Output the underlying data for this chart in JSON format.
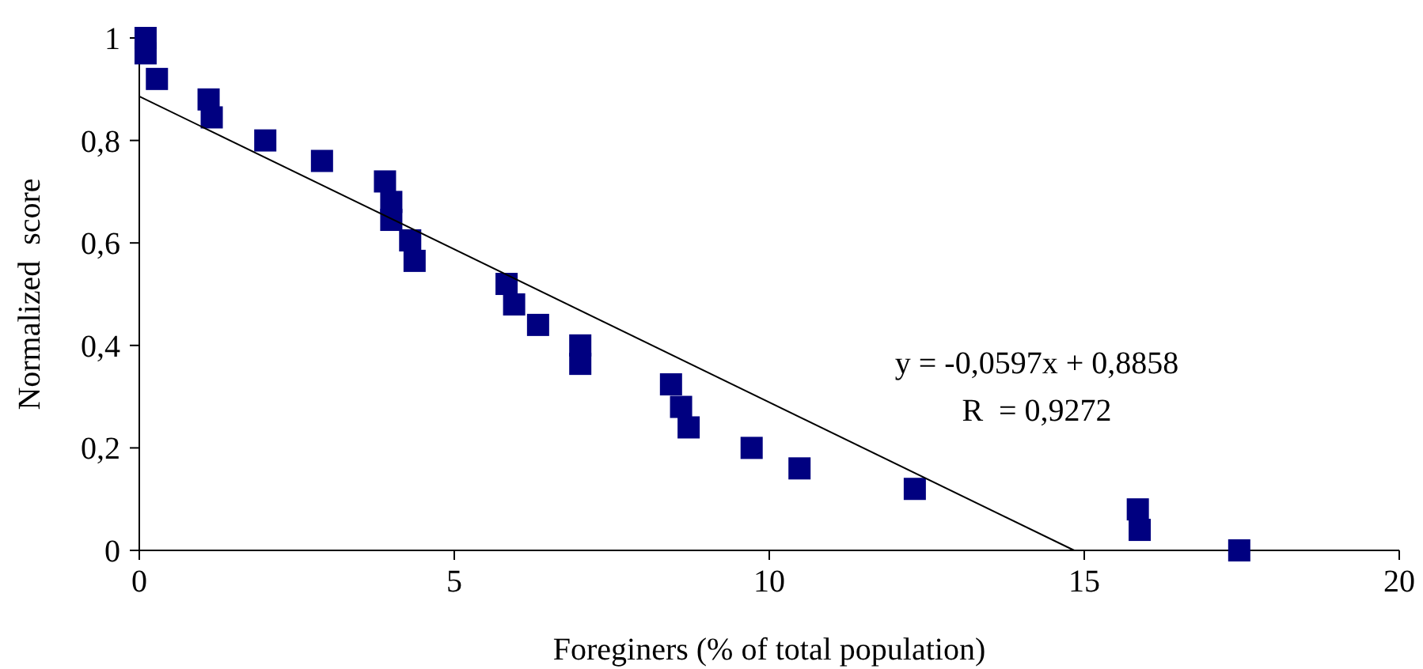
{
  "chart_data": {
    "type": "scatter",
    "xlabel": "Foreginers (% of total population)",
    "ylabel": "Normalized  score",
    "xlim": [
      0,
      20
    ],
    "ylim": [
      0,
      1
    ],
    "xticks": [
      0,
      5,
      10,
      15,
      20
    ],
    "yticks": [
      0,
      {
        "value": 0.2,
        "label": "0,2"
      },
      {
        "value": 0.4,
        "label": "0,4"
      },
      {
        "value": 0.6,
        "label": "0,6"
      },
      {
        "value": 0.8,
        "label": "0,8"
      },
      1
    ],
    "grid": false,
    "marker": "square",
    "series": [
      {
        "type": "scatter",
        "color": "#000080",
        "x": [
          0.1,
          0.1,
          0.28,
          1.1,
          1.15,
          2.0,
          2.9,
          3.9,
          4.0,
          4.0,
          4.3,
          4.37,
          5.83,
          5.95,
          6.33,
          7.0,
          7.0,
          8.44,
          8.6,
          8.72,
          9.72,
          10.48,
          12.31,
          15.85,
          15.88,
          17.46
        ],
        "values": [
          1.0,
          0.97,
          0.92,
          0.88,
          0.845,
          0.8,
          0.76,
          0.72,
          0.68,
          0.645,
          0.605,
          0.565,
          0.52,
          0.48,
          0.44,
          0.4,
          0.364,
          0.324,
          0.28,
          0.24,
          0.2,
          0.16,
          0.12,
          0.08,
          0.04,
          0.0
        ]
      },
      {
        "type": "line",
        "color": "#000000",
        "line_style": "solid",
        "marker": "none",
        "x": [
          0,
          14.84
        ],
        "values": [
          0.886,
          0
        ]
      }
    ],
    "annotations": [
      "y = -0,0597x + 0,8858",
      "R  = 0,9272"
    ]
  }
}
